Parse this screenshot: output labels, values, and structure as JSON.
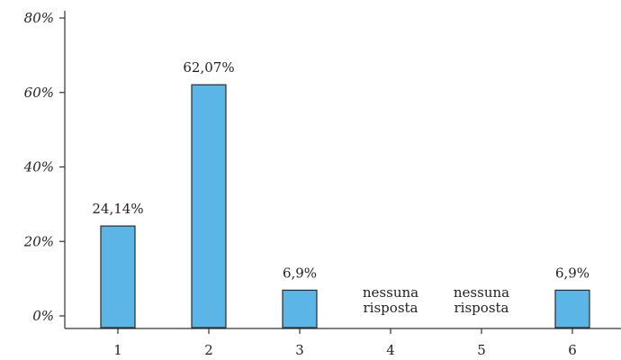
{
  "chart_data": {
    "type": "bar",
    "categories": [
      "1",
      "2",
      "3",
      "4",
      "5",
      "6"
    ],
    "values": [
      24.14,
      62.07,
      6.9,
      0,
      0,
      6.9
    ],
    "data_labels": [
      "24,14%",
      "62,07%",
      "6,9%",
      "nessuna risposta",
      "nessuna risposta",
      "6,9%"
    ],
    "y_ticks": [
      0,
      20,
      40,
      60,
      80
    ],
    "y_tick_labels": [
      "0%",
      "20%",
      "40%",
      "60%",
      "80%"
    ],
    "ylim": [
      0,
      80
    ],
    "title": "",
    "xlabel": "",
    "ylabel": "",
    "grid": false,
    "bar_color": "#5bb5e6",
    "bar_edge_color": "#2a2a2a"
  }
}
